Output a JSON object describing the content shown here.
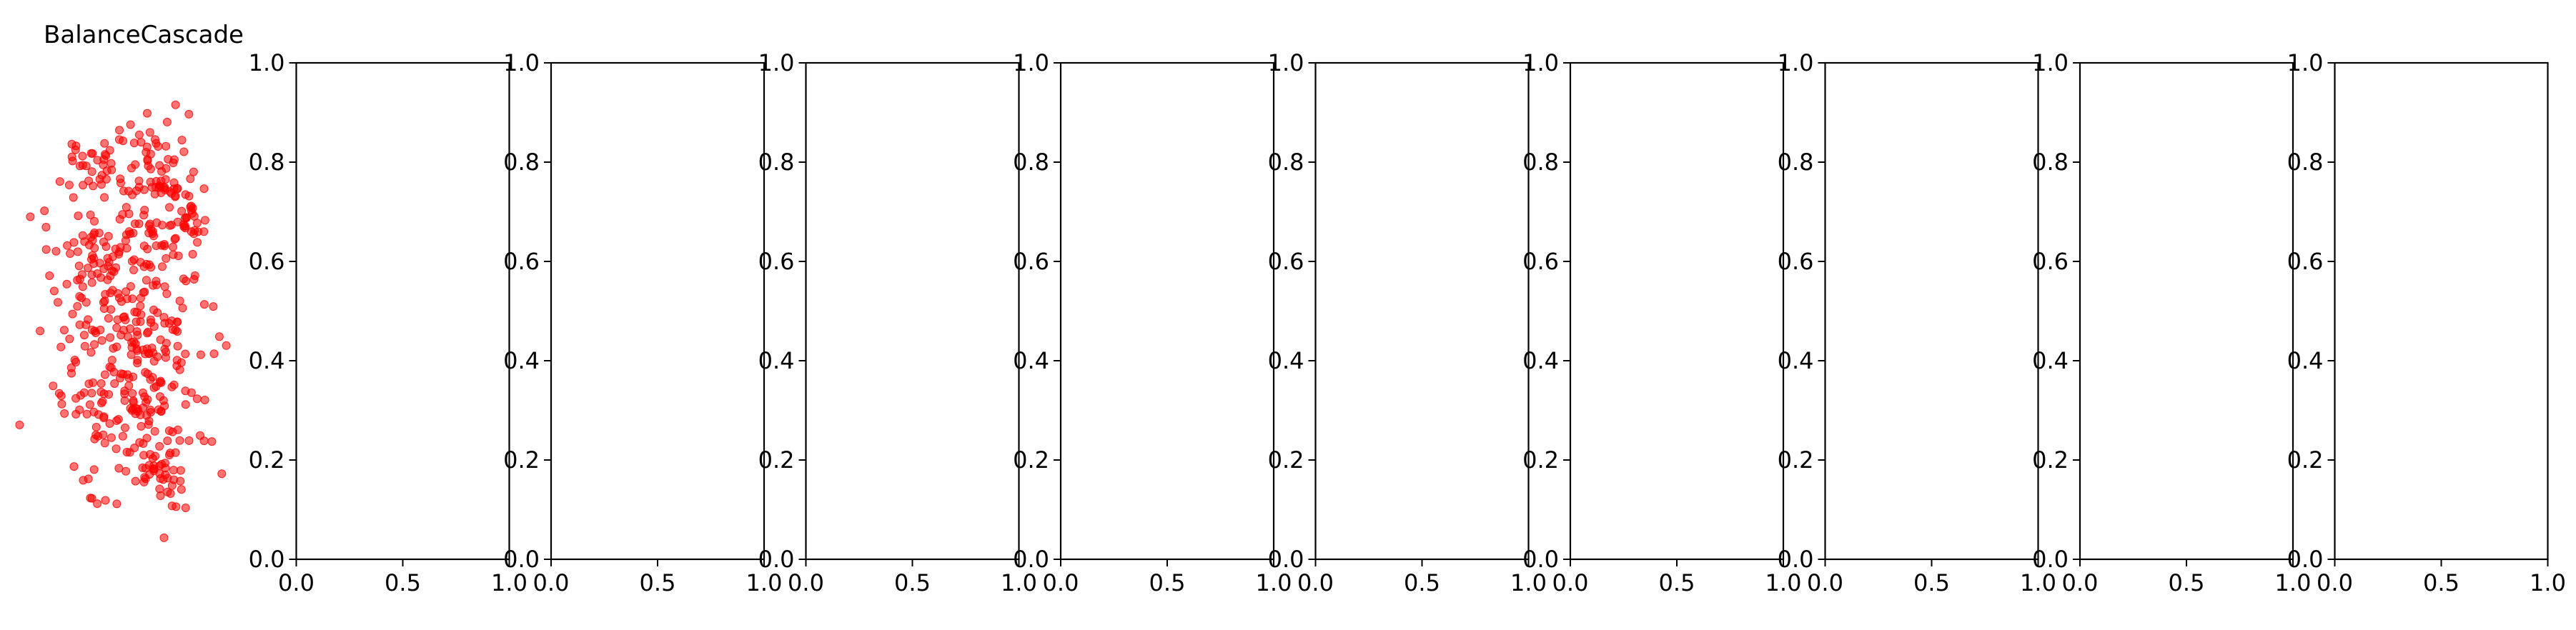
{
  "chart_data": [
    {
      "type": "scatter",
      "title": "BalanceCascade",
      "axes_visible": false,
      "point_color": "#ff0000",
      "point_alpha": 0.55,
      "clusters": [
        {
          "cx": 0.35,
          "cy": 0.79,
          "sx": 0.07,
          "sy": 0.03,
          "n": 35
        },
        {
          "cx": 0.72,
          "cy": 0.77,
          "sx": 0.09,
          "sy": 0.06,
          "n": 55
        },
        {
          "cx": 0.85,
          "cy": 0.69,
          "sx": 0.05,
          "sy": 0.04,
          "n": 30
        },
        {
          "cx": 0.45,
          "cy": 0.62,
          "sx": 0.16,
          "sy": 0.06,
          "n": 100
        },
        {
          "cx": 0.55,
          "cy": 0.48,
          "sx": 0.18,
          "sy": 0.07,
          "n": 110
        },
        {
          "cx": 0.52,
          "cy": 0.35,
          "sx": 0.17,
          "sy": 0.06,
          "n": 95
        },
        {
          "cx": 0.55,
          "cy": 0.24,
          "sx": 0.15,
          "sy": 0.05,
          "n": 55
        },
        {
          "cx": 0.7,
          "cy": 0.17,
          "sx": 0.07,
          "sy": 0.04,
          "n": 30
        },
        {
          "cx": 0.6,
          "cy": 0.88,
          "sx": 0.06,
          "sy": 0.03,
          "n": 10
        },
        {
          "cx": 0.38,
          "cy": 0.13,
          "sx": 0.04,
          "sy": 0.03,
          "n": 6
        }
      ],
      "seed": 7
    },
    {
      "type": "scatter",
      "xlim": [
        0,
        1
      ],
      "ylim": [
        0,
        1
      ],
      "xticks": [
        "0.0",
        "0.5",
        "1.0"
      ],
      "yticks": [
        "0.0",
        "0.2",
        "0.4",
        "0.6",
        "0.8",
        "1.0"
      ],
      "points": []
    },
    {
      "type": "scatter",
      "xlim": [
        0,
        1
      ],
      "ylim": [
        0,
        1
      ],
      "xticks": [
        "0.0",
        "0.5",
        "1.0"
      ],
      "yticks": [
        "0.0",
        "0.2",
        "0.4",
        "0.6",
        "0.8",
        "1.0"
      ],
      "points": []
    },
    {
      "type": "scatter",
      "xlim": [
        0,
        1
      ],
      "ylim": [
        0,
        1
      ],
      "xticks": [
        "0.0",
        "0.5",
        "1.0"
      ],
      "yticks": [
        "0.0",
        "0.2",
        "0.4",
        "0.6",
        "0.8",
        "1.0"
      ],
      "points": []
    },
    {
      "type": "scatter",
      "xlim": [
        0,
        1
      ],
      "ylim": [
        0,
        1
      ],
      "xticks": [
        "0.0",
        "0.5",
        "1.0"
      ],
      "yticks": [
        "0.0",
        "0.2",
        "0.4",
        "0.6",
        "0.8",
        "1.0"
      ],
      "points": []
    },
    {
      "type": "scatter",
      "xlim": [
        0,
        1
      ],
      "ylim": [
        0,
        1
      ],
      "xticks": [
        "0.0",
        "0.5",
        "1.0"
      ],
      "yticks": [
        "0.0",
        "0.2",
        "0.4",
        "0.6",
        "0.8",
        "1.0"
      ],
      "points": []
    },
    {
      "type": "scatter",
      "xlim": [
        0,
        1
      ],
      "ylim": [
        0,
        1
      ],
      "xticks": [
        "0.0",
        "0.5",
        "1.0"
      ],
      "yticks": [
        "0.0",
        "0.2",
        "0.4",
        "0.6",
        "0.8",
        "1.0"
      ],
      "points": []
    },
    {
      "type": "scatter",
      "xlim": [
        0,
        1
      ],
      "ylim": [
        0,
        1
      ],
      "xticks": [
        "0.0",
        "0.5",
        "1.0"
      ],
      "yticks": [
        "0.0",
        "0.2",
        "0.4",
        "0.6",
        "0.8",
        "1.0"
      ],
      "points": []
    },
    {
      "type": "scatter",
      "xlim": [
        0,
        1
      ],
      "ylim": [
        0,
        1
      ],
      "xticks": [
        "0.0",
        "0.5",
        "1.0"
      ],
      "yticks": [
        "0.0",
        "0.2",
        "0.4",
        "0.6",
        "0.8",
        "1.0"
      ],
      "points": []
    },
    {
      "type": "scatter",
      "xlim": [
        0,
        1
      ],
      "ylim": [
        0,
        1
      ],
      "xticks": [
        "0.0",
        "0.5",
        "1.0"
      ],
      "yticks": [
        "0.0",
        "0.2",
        "0.4",
        "0.6",
        "0.8",
        "1.0"
      ],
      "points": []
    }
  ]
}
